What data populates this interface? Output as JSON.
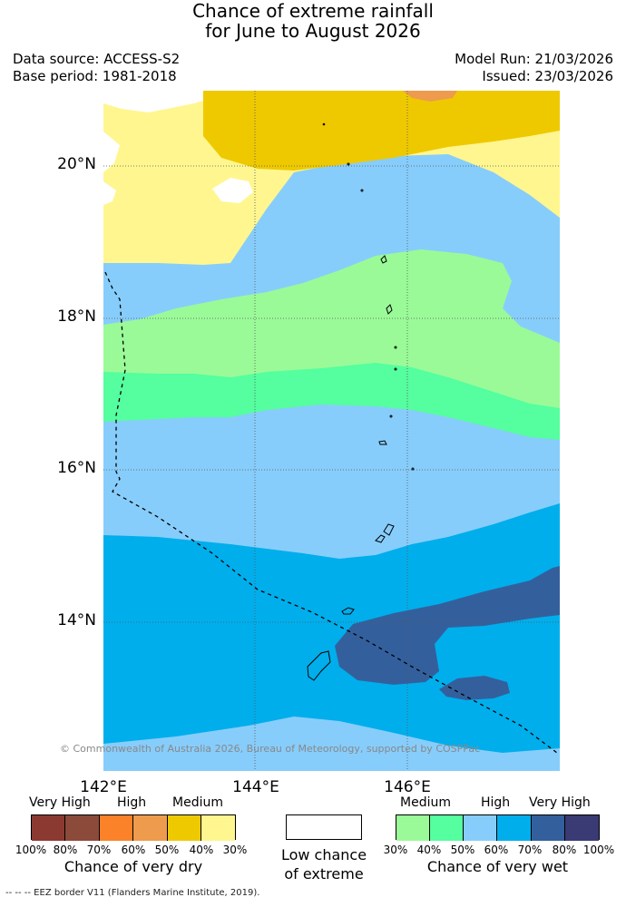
{
  "title": {
    "line1": "Chance of extreme rainfall",
    "line2": "for June to August 2026"
  },
  "meta": {
    "data_source": "Data source: ACCESS-S2",
    "base_period": "Base period: 1981-2018",
    "model_run": "Model Run: 21/03/2026",
    "issued": "Issued: 23/03/2026"
  },
  "map": {
    "lat_labels": [
      "20°N",
      "18°N",
      "16°N",
      "14°N"
    ],
    "lon_labels": [
      "142°E",
      "144°E",
      "146°E"
    ],
    "credit": "© Commonwealth of Australia 2026, Bureau of Meteorology, supported by COSPPac",
    "colors": {
      "dry_100": "#8b3a32",
      "dry_80": "#8c4a3a",
      "dry_70": "#fb8228",
      "dry_60": "#ee9b4d",
      "dry_50": "#eec900",
      "dry_40": "#fff68f",
      "low": "#ffffff",
      "wet_30": "#9afa98",
      "wet_40": "#55fe9e",
      "wet_50": "#87cdfb",
      "wet_60": "#00aeec",
      "wet_70": "#33609d",
      "wet_80": "#3a3a75"
    }
  },
  "legend": {
    "dry": {
      "categories": [
        "Very High",
        "High",
        "Medium"
      ],
      "ticks": [
        "100%",
        "80%",
        "70%",
        "60%",
        "50%",
        "40%",
        "30%"
      ],
      "caption": "Chance of very dry"
    },
    "low": {
      "caption_line1": "Low chance",
      "caption_line2": "of extreme"
    },
    "wet": {
      "categories": [
        "Medium",
        "High",
        "Very High"
      ],
      "ticks": [
        "30%",
        "40%",
        "50%",
        "60%",
        "70%",
        "80%",
        "100%"
      ],
      "caption": "Chance of very wet"
    }
  },
  "footer": "--  --  -- EEZ border V11 (Flanders Marine Institute, 2019)."
}
